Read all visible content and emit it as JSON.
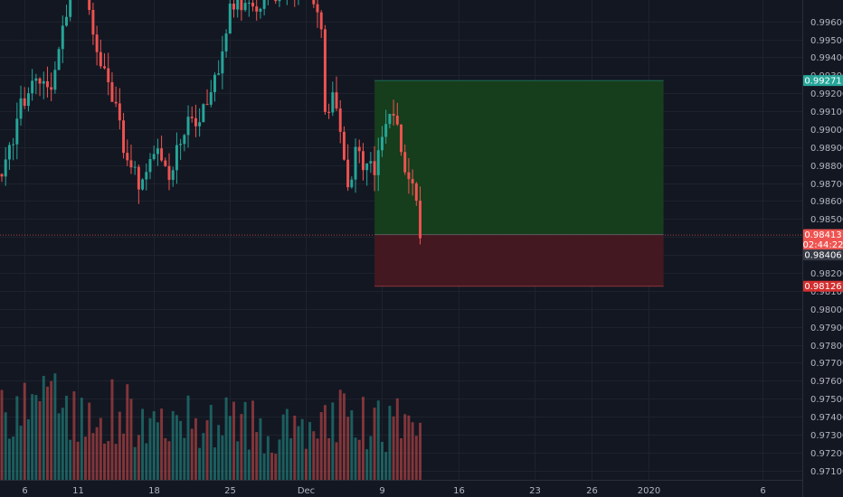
{
  "chart_data": {
    "type": "candlestick",
    "y_ticks": [
      "0.99600",
      "0.99500",
      "0.99400",
      "0.99300",
      "0.99200",
      "0.99100",
      "0.99000",
      "0.98900",
      "0.98800",
      "0.98700",
      "0.98600",
      "0.98500",
      "0.98400",
      "0.98300",
      "0.98200",
      "0.98100",
      "0.98000",
      "0.97900",
      "0.97800",
      "0.97700",
      "0.97600",
      "0.97500",
      "0.97400",
      "0.97300",
      "0.97200",
      "0.97100"
    ],
    "y_tick_values": [
      0.996,
      0.995,
      0.994,
      0.993,
      0.992,
      0.991,
      0.99,
      0.989,
      0.988,
      0.987,
      0.986,
      0.985,
      0.984,
      0.983,
      0.982,
      0.981,
      0.98,
      0.979,
      0.978,
      0.977,
      0.976,
      0.975,
      0.974,
      0.973,
      0.972,
      0.971
    ],
    "ylim": [
      0.97048,
      0.99719
    ],
    "x_ticks": [
      "6",
      "11",
      "18",
      "25",
      "Dec",
      "9",
      "16",
      "23",
      "26",
      "2020",
      "6"
    ],
    "x_tick_index": [
      6,
      20,
      40,
      60,
      80,
      100,
      120,
      140,
      155,
      170,
      200
    ],
    "x_range": [
      0,
      210
    ],
    "price_tags": [
      {
        "label": "0.99271",
        "value": 0.99271,
        "color": "#26a69a"
      },
      {
        "label": "0.98413",
        "value": 0.98413,
        "color": "#ef5350"
      },
      {
        "label": "02:44:22",
        "value": 0.98358,
        "color": "#ef5350"
      },
      {
        "label": "0.98406",
        "value": 0.983,
        "color": "#363a45"
      },
      {
        "label": "0.98126",
        "value": 0.98126,
        "color": "#d32f2f"
      }
    ],
    "position": {
      "type": "long",
      "entry": 0.98413,
      "target": 0.99271,
      "stop": 0.98126,
      "start_index": 98,
      "end_index": 174,
      "profit_color": "#163d1c",
      "loss_color": "#431820"
    },
    "colors": {
      "up": "#26a69a",
      "down": "#ef5350",
      "grid": "#1e222d",
      "axis_text": "#b2b5be",
      "background": "#131722"
    },
    "price_waypoints": [
      [
        0,
        0.9875
      ],
      [
        4,
        0.9905
      ],
      [
        7,
        0.9925
      ],
      [
        12,
        0.992
      ],
      [
        15,
        0.994
      ],
      [
        18,
        0.998
      ],
      [
        21,
        0.9985
      ],
      [
        24,
        0.995
      ],
      [
        27,
        0.9935
      ],
      [
        30,
        0.991
      ],
      [
        33,
        0.988
      ],
      [
        36,
        0.987
      ],
      [
        40,
        0.989
      ],
      [
        44,
        0.9875
      ],
      [
        48,
        0.99
      ],
      [
        52,
        0.9905
      ],
      [
        56,
        0.9925
      ],
      [
        60,
        0.997
      ],
      [
        63,
        0.9968
      ],
      [
        65,
        0.9966
      ],
      [
        70,
        0.9975
      ],
      [
        80,
        0.9982
      ],
      [
        84,
        0.996
      ],
      [
        85,
        0.991
      ],
      [
        87,
        0.992
      ],
      [
        90,
        0.988
      ],
      [
        91,
        0.9865
      ],
      [
        93,
        0.9885
      ],
      [
        96,
        0.988
      ],
      [
        98,
        0.988
      ],
      [
        101,
        0.9905
      ],
      [
        103,
        0.9905
      ],
      [
        106,
        0.988
      ],
      [
        109,
        0.986
      ],
      [
        110,
        0.9843
      ]
    ],
    "volume_waypoints": [
      [
        0,
        150
      ],
      [
        8,
        220
      ],
      [
        13,
        180
      ],
      [
        20,
        140
      ],
      [
        30,
        160
      ],
      [
        40,
        120
      ],
      [
        50,
        150
      ],
      [
        60,
        130
      ],
      [
        70,
        120
      ],
      [
        80,
        100
      ],
      [
        90,
        150
      ],
      [
        100,
        120
      ],
      [
        105,
        130
      ],
      [
        110,
        90
      ]
    ],
    "volume_ylim": [
      0,
      250
    ]
  }
}
